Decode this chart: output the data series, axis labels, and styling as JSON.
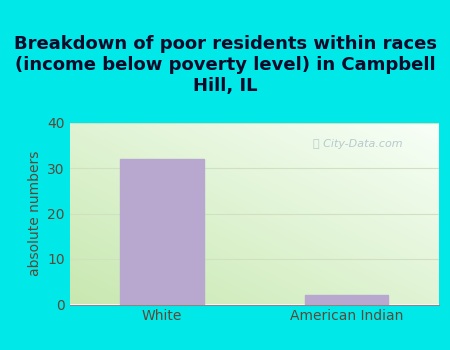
{
  "categories": [
    "White",
    "American Indian"
  ],
  "values": [
    32,
    2
  ],
  "bar_color": "#b8a8d0",
  "title": "Breakdown of poor residents within races\n(income below poverty level) in Campbell\nHill, IL",
  "ylabel": "absolute numbers",
  "ylim": [
    0,
    40
  ],
  "yticks": [
    0,
    10,
    20,
    30,
    40
  ],
  "bg_cyan": "#00e8e8",
  "bg_plot_bottom_left": "#c8e8b0",
  "bg_plot_top_right": "#f0f8ee",
  "title_fontsize": 13,
  "label_fontsize": 10,
  "tick_fontsize": 10,
  "bar_width": 0.45,
  "watermark": "City-Data.com",
  "watermark_color": "#b0c4cc",
  "tick_color": "#5a4a3a",
  "grid_color": "#d0e0c0",
  "title_color": "#0a0a2a"
}
